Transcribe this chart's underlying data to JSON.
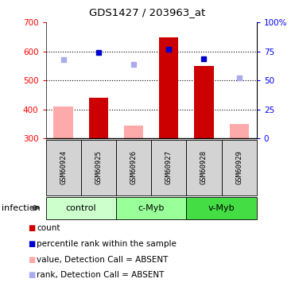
{
  "title": "GDS1427 / 203963_at",
  "samples": [
    "GSM60924",
    "GSM60925",
    "GSM60926",
    "GSM60927",
    "GSM60928",
    "GSM60929"
  ],
  "group_defs": [
    {
      "start": 0,
      "end": 1,
      "name": "control",
      "color": "#ccffcc"
    },
    {
      "start": 2,
      "end": 3,
      "name": "c-Myb",
      "color": "#99ff99"
    },
    {
      "start": 4,
      "end": 5,
      "name": "v-Myb",
      "color": "#44dd44"
    }
  ],
  "bar_values": [
    null,
    440,
    null,
    648,
    551,
    null
  ],
  "bar_absent_values": [
    410,
    null,
    345,
    null,
    null,
    350
  ],
  "rank_values": [
    null,
    596,
    null,
    608,
    574,
    null
  ],
  "rank_absent_values": [
    572,
    null,
    556,
    null,
    null,
    508
  ],
  "bar_color": "#cc0000",
  "bar_absent_color": "#ffaaaa",
  "rank_color": "#0000cc",
  "rank_absent_color": "#aaaaee",
  "ylim_left": [
    300,
    700
  ],
  "ylim_right": [
    0,
    100
  ],
  "yticks_left": [
    300,
    400,
    500,
    600,
    700
  ],
  "yticks_right": [
    0,
    25,
    50,
    75,
    100
  ],
  "ytick_labels_right": [
    "0",
    "25",
    "50",
    "75",
    "100%"
  ],
  "hgrid_vals": [
    400,
    500,
    600
  ],
  "bar_width": 0.55,
  "infection_label": "infection",
  "legend_items": [
    {
      "label": "count",
      "color": "#cc0000"
    },
    {
      "label": "percentile rank within the sample",
      "color": "#0000cc"
    },
    {
      "label": "value, Detection Call = ABSENT",
      "color": "#ffaaaa"
    },
    {
      "label": "rank, Detection Call = ABSENT",
      "color": "#aaaaee"
    }
  ]
}
